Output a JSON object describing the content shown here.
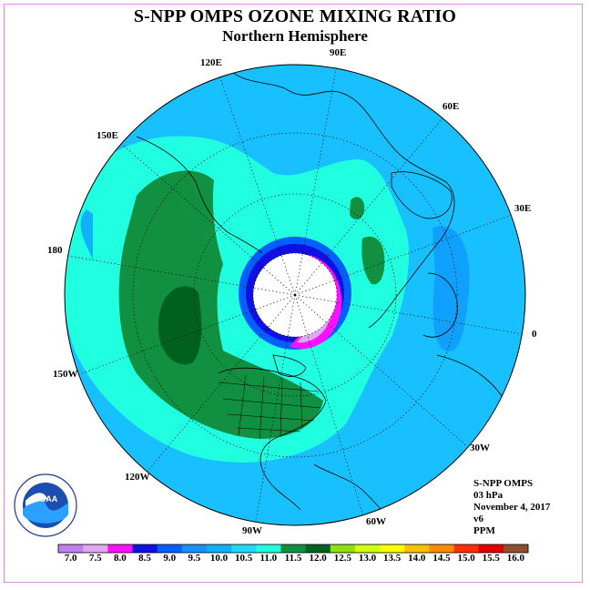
{
  "title": "S-NPP OMPS OZONE MIXING RATIO",
  "subtitle": "Northern Hemisphere",
  "longitude_labels": {
    "e90": "90E",
    "e60": "60E",
    "e30": "30E",
    "zero": "0",
    "w30": "30W",
    "w60": "60W",
    "w90": "90W",
    "w120": "120W",
    "w150": "150W",
    "d180": "180",
    "e150": "150E",
    "e120": "120E"
  },
  "info": {
    "instrument": "S-NPP OMPS",
    "level": "03 hPa",
    "date": "November 4, 2017",
    "version": "v6",
    "unit": "PPM"
  },
  "colorbar": {
    "labels": [
      "7.0",
      "7.5",
      "8.0",
      "8.5",
      "9.0",
      "9.5",
      "10.0",
      "10.5",
      "11.0",
      "11.5",
      "12.0",
      "12.5",
      "13.0",
      "13.5",
      "14.0",
      "14.5",
      "15.0",
      "15.5",
      "16.0"
    ],
    "colors": [
      "#c080f0",
      "#e0a8f0",
      "#ff10ff",
      "#1010e0",
      "#0060ff",
      "#1890ff",
      "#10b0ff",
      "#20d8ff",
      "#20ffe0",
      "#109040",
      "#006020",
      "#90e010",
      "#d0ff10",
      "#ffff00",
      "#ffc000",
      "#ff8c00",
      "#ff3000",
      "#e00000",
      "#8c5030"
    ]
  },
  "logo_text": "NOAA",
  "logo_ring_text": "NATIONAL OCEANIC AND ATMOSPHERIC ADMINISTRATION · U.S. DEPARTMENT OF COMMERCE"
}
